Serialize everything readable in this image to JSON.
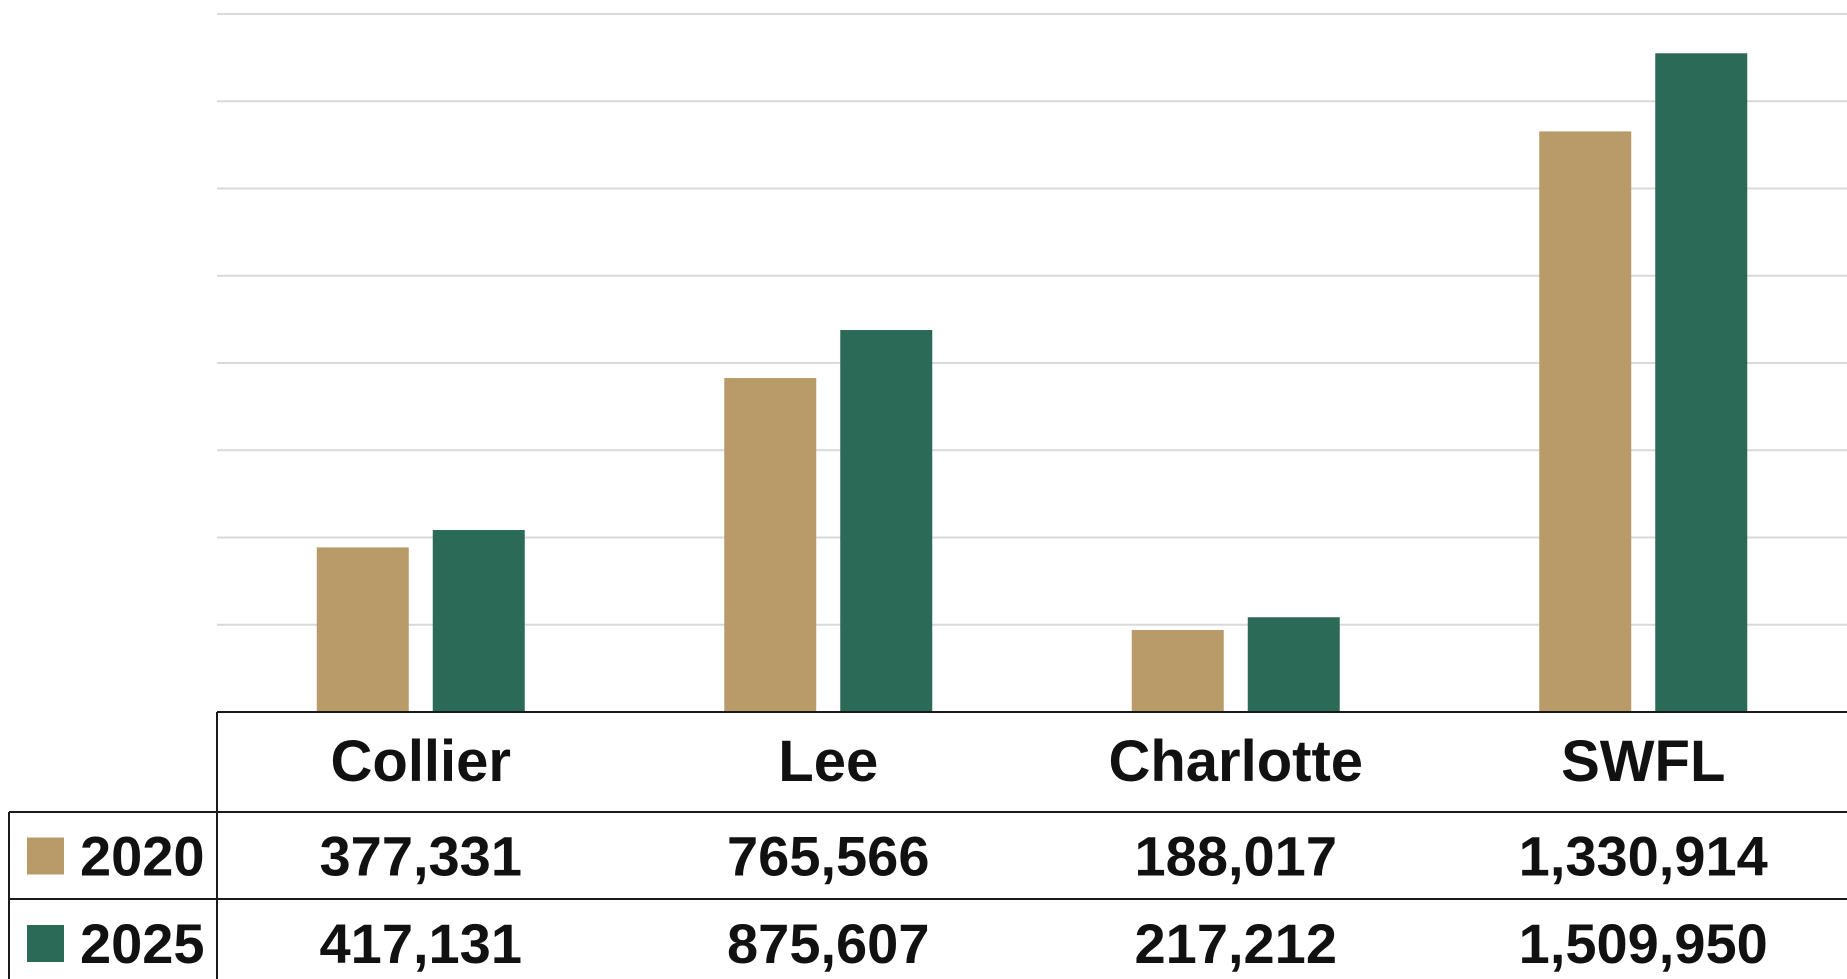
{
  "chart_data": {
    "type": "bar",
    "categories": [
      "Collier",
      "Lee",
      "Charlotte",
      "SWFL"
    ],
    "series": [
      {
        "name": "2020",
        "color": "#b89b68",
        "values": [
          377331,
          765566,
          188017,
          1330914
        ],
        "labels": [
          "377,331",
          "765,566",
          "188,017",
          "1,330,914"
        ]
      },
      {
        "name": "2025",
        "color": "#2a6a56",
        "values": [
          417131,
          875607,
          217212,
          1509950
        ],
        "labels": [
          "417,131",
          "875,607",
          "217,212",
          "1,509,950"
        ]
      }
    ],
    "ylim": [
      0,
      1600000
    ],
    "y_grid_step": 200000,
    "grid": true,
    "legend": "data-table-left",
    "data_table": true
  }
}
